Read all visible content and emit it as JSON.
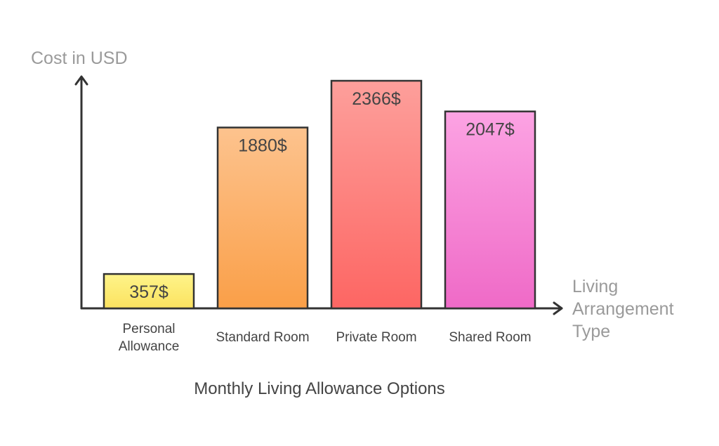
{
  "chart_data": {
    "type": "bar",
    "title": "Monthly Living Allowance Options",
    "ylabel": "Cost in USD",
    "xlabel": [
      "Living",
      "Arrangement",
      "Type"
    ],
    "categories": [
      [
        "Personal",
        "Allowance"
      ],
      [
        "Standard Room"
      ],
      [
        "Private Room"
      ],
      [
        "Shared Room"
      ]
    ],
    "values": [
      357,
      1880,
      2366,
      2047
    ],
    "value_labels": [
      "357$",
      "1880$",
      "2366$",
      "2047$"
    ],
    "colors": [
      [
        "#fef48a",
        "#fbe25f"
      ],
      [
        "#fdc38e",
        "#fa9f48"
      ],
      [
        "#fd9f9b",
        "#fd6663"
      ],
      [
        "#fca3e3",
        "#ef6ac7"
      ]
    ],
    "ylim": [
      0,
      2366
    ],
    "grid": false,
    "legend": "none"
  }
}
